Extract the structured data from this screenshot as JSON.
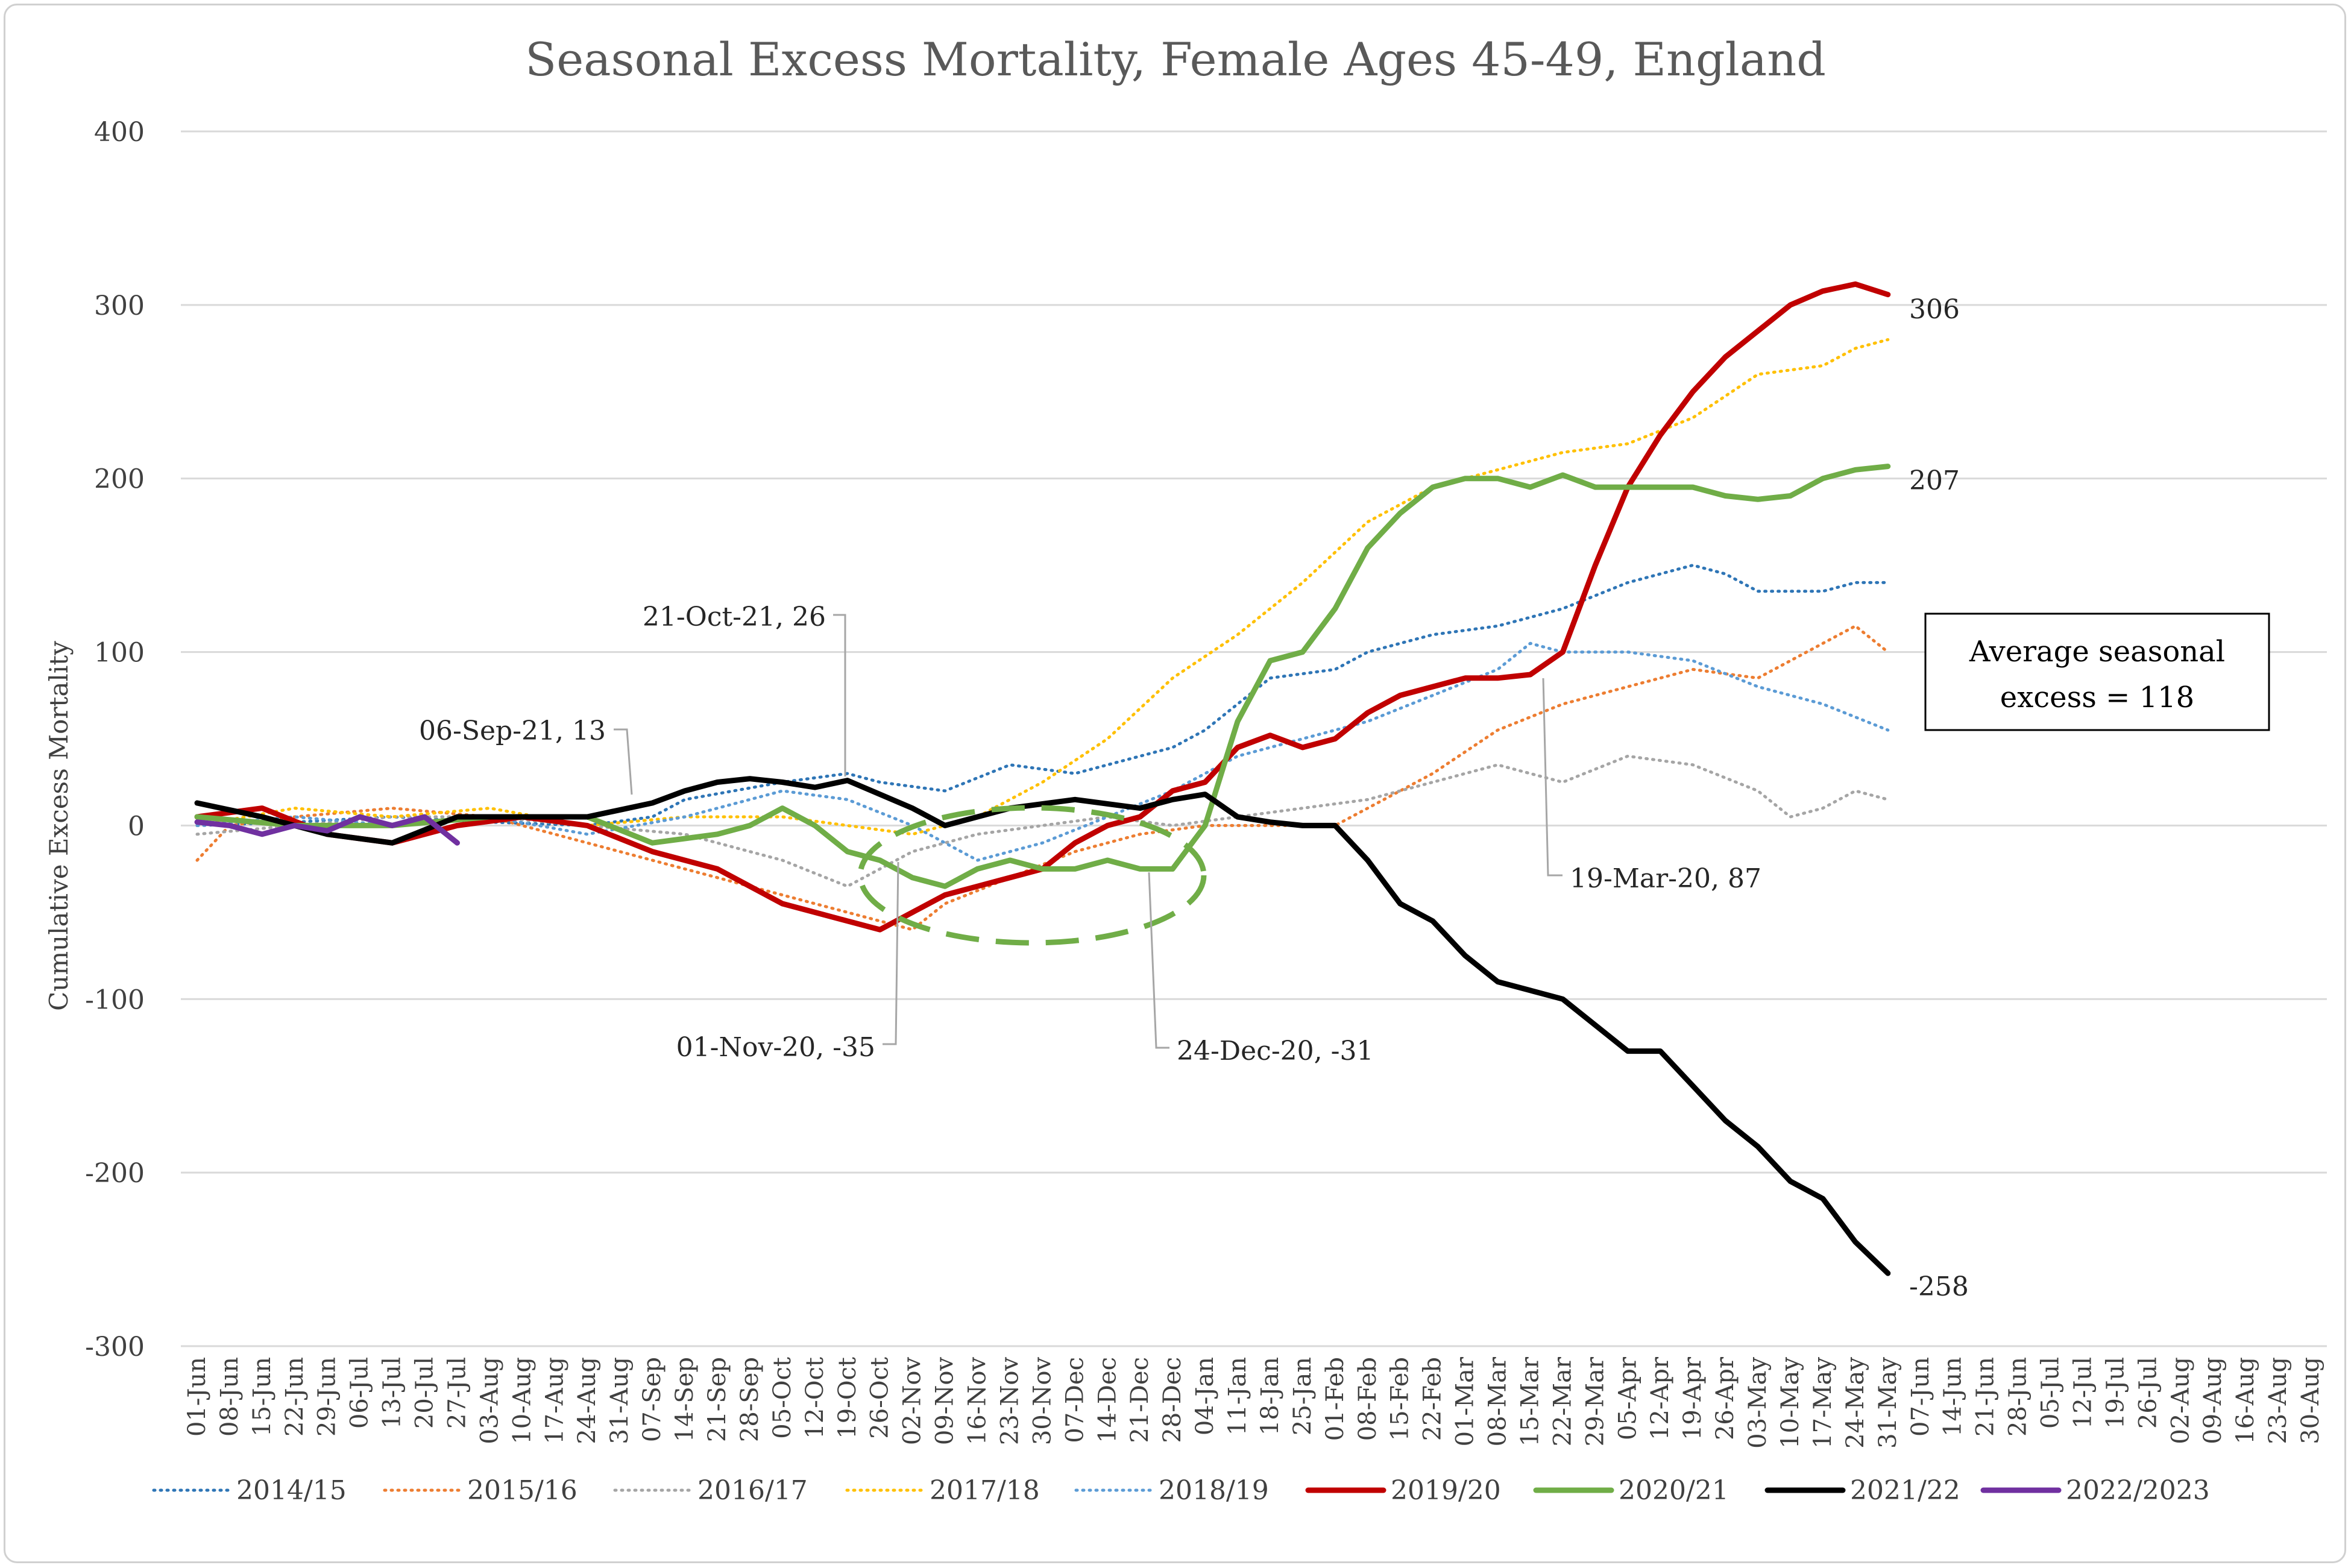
{
  "chart_data": {
    "type": "line",
    "title": "Seasonal Excess Mortality, Female Ages 45-49, England",
    "ylabel": "Cumulative Excess Mortality",
    "xlabel": "",
    "ylim": [
      -300,
      400
    ],
    "yticks": [
      400,
      300,
      200,
      100,
      0,
      -100,
      -200,
      -300
    ],
    "grid": "horizontal",
    "legend_position": "bottom",
    "x_tick_labels": [
      "01-Jun",
      "08-Jun",
      "15-Jun",
      "22-Jun",
      "29-Jun",
      "06-Jul",
      "13-Jul",
      "20-Jul",
      "27-Jul",
      "03-Aug",
      "10-Aug",
      "17-Aug",
      "24-Aug",
      "31-Aug",
      "07-Sep",
      "14-Sep",
      "21-Sep",
      "28-Sep",
      "05-Oct",
      "12-Oct",
      "19-Oct",
      "26-Oct",
      "02-Nov",
      "09-Nov",
      "16-Nov",
      "23-Nov",
      "30-Nov",
      "07-Dec",
      "14-Dec",
      "21-Dec",
      "28-Dec",
      "04-Jan",
      "11-Jan",
      "18-Jan",
      "25-Jan",
      "01-Feb",
      "08-Feb",
      "15-Feb",
      "22-Feb",
      "01-Mar",
      "08-Mar",
      "15-Mar",
      "22-Mar",
      "29-Mar",
      "05-Apr",
      "12-Apr",
      "19-Apr",
      "26-Apr",
      "03-May",
      "10-May",
      "17-May",
      "24-May",
      "31-May",
      "07-Jun",
      "14-Jun",
      "21-Jun",
      "28-Jun",
      "05-Jul",
      "12-Jul",
      "19-Jul",
      "26-Jul",
      "02-Aug",
      "09-Aug",
      "16-Aug",
      "23-Aug",
      "30-Aug"
    ],
    "x_units": "week index from 01-Jun",
    "series": [
      {
        "name": "2014/15",
        "color": "#2e75b6",
        "style": "dotted",
        "x": [
          0,
          3,
          6,
          9,
          12,
          14,
          15,
          18,
          20,
          21,
          23,
          25,
          27,
          29,
          30,
          31,
          32,
          33,
          35,
          36,
          38,
          40,
          41,
          42,
          44,
          46,
          47,
          48,
          50,
          51,
          52
        ],
        "y": [
          0,
          2,
          5,
          2,
          0,
          5,
          15,
          25,
          30,
          25,
          20,
          35,
          30,
          40,
          45,
          55,
          70,
          85,
          90,
          100,
          110,
          115,
          120,
          125,
          140,
          150,
          145,
          135,
          135,
          140,
          140
        ]
      },
      {
        "name": "2015/16",
        "color": "#ed7d31",
        "style": "dotted",
        "x": [
          0,
          1,
          3,
          6,
          9,
          12,
          14,
          16,
          18,
          20,
          21,
          22,
          23,
          25,
          27,
          29,
          31,
          33,
          35,
          36,
          38,
          40,
          42,
          44,
          46,
          48,
          50,
          51,
          52
        ],
        "y": [
          -20,
          0,
          5,
          10,
          5,
          -10,
          -20,
          -30,
          -40,
          -50,
          -55,
          -60,
          -45,
          -30,
          -15,
          -5,
          0,
          0,
          0,
          10,
          30,
          55,
          70,
          80,
          90,
          85,
          105,
          115,
          100
        ]
      },
      {
        "name": "2016/17",
        "color": "#a5a5a5",
        "style": "dotted",
        "x": [
          0,
          3,
          6,
          9,
          12,
          15,
          18,
          20,
          22,
          24,
          26,
          28,
          30,
          32,
          34,
          36,
          38,
          40,
          42,
          44,
          46,
          48,
          49,
          50,
          51,
          52
        ],
        "y": [
          -5,
          0,
          5,
          5,
          0,
          -5,
          -20,
          -35,
          -15,
          -5,
          0,
          5,
          0,
          5,
          10,
          15,
          25,
          35,
          25,
          40,
          35,
          20,
          5,
          10,
          20,
          15
        ]
      },
      {
        "name": "2017/18",
        "color": "#ffc000",
        "style": "dotted",
        "x": [
          0,
          3,
          6,
          9,
          12,
          15,
          18,
          20,
          22,
          24,
          26,
          28,
          30,
          32,
          34,
          36,
          38,
          40,
          42,
          44,
          46,
          48,
          50,
          51,
          52
        ],
        "y": [
          0,
          10,
          5,
          10,
          0,
          5,
          5,
          0,
          -5,
          5,
          25,
          50,
          85,
          110,
          140,
          175,
          195,
          205,
          215,
          220,
          235,
          260,
          265,
          275,
          280
        ]
      },
      {
        "name": "2018/19",
        "color": "#5b9bd5",
        "style": "dotted",
        "x": [
          0,
          3,
          6,
          9,
          12,
          15,
          18,
          20,
          22,
          23,
          24,
          25,
          26,
          28,
          30,
          32,
          34,
          36,
          38,
          40,
          41,
          42,
          44,
          46,
          48,
          50,
          52
        ],
        "y": [
          0,
          5,
          0,
          5,
          -5,
          5,
          20,
          15,
          0,
          -10,
          -20,
          -15,
          -10,
          5,
          20,
          40,
          50,
          60,
          75,
          90,
          105,
          100,
          100,
          95,
          80,
          70,
          55
        ]
      },
      {
        "name": "2019/20",
        "color": "#c00000",
        "style": "solid",
        "x": [
          0,
          2,
          4,
          6,
          8,
          10,
          12,
          14,
          16,
          18,
          19,
          20,
          21,
          22,
          23,
          24,
          26,
          27,
          28,
          29,
          30,
          31,
          32,
          33,
          34,
          35,
          36,
          37,
          38,
          39,
          40,
          41,
          42,
          43,
          44,
          45,
          46,
          47,
          48,
          49,
          50,
          51,
          52
        ],
        "y": [
          5,
          10,
          -5,
          -10,
          0,
          5,
          0,
          -15,
          -25,
          -45,
          -50,
          -55,
          -60,
          -50,
          -40,
          -35,
          -25,
          -10,
          0,
          5,
          20,
          25,
          45,
          52,
          45,
          50,
          65,
          75,
          80,
          85,
          85,
          87,
          100,
          150,
          195,
          225,
          250,
          270,
          285,
          300,
          308,
          312,
          306
        ]
      },
      {
        "name": "2020/21",
        "color": "#70ad47",
        "style": "solid",
        "x": [
          0,
          3,
          6,
          9,
          12,
          14,
          16,
          17,
          18,
          19,
          20,
          21,
          22,
          23,
          24,
          25,
          26,
          27,
          28,
          29,
          30,
          31,
          32,
          33,
          34,
          35,
          36,
          37,
          38,
          39,
          40,
          41,
          42,
          43,
          44,
          45,
          46,
          47,
          48,
          49,
          50,
          51,
          52
        ],
        "y": [
          5,
          0,
          0,
          5,
          5,
          -10,
          -5,
          0,
          10,
          0,
          -15,
          -20,
          -30,
          -35,
          -25,
          -20,
          -25,
          -25,
          -20,
          -25,
          -25,
          0,
          60,
          95,
          100,
          125,
          160,
          180,
          195,
          200,
          200,
          195,
          202,
          195,
          195,
          195,
          195,
          190,
          188,
          190,
          200,
          205,
          207
        ]
      },
      {
        "name": "2021/22",
        "color": "#000000",
        "style": "solid",
        "x": [
          0,
          2,
          4,
          6,
          8,
          10,
          12,
          14,
          15,
          16,
          17,
          18,
          19,
          20,
          21,
          22,
          23,
          25,
          27,
          29,
          30,
          31,
          32,
          33,
          34,
          35,
          36,
          37,
          38,
          39,
          40,
          41,
          42,
          43,
          44,
          45,
          46,
          47,
          48,
          49,
          50,
          51,
          52
        ],
        "y": [
          13,
          5,
          -5,
          -10,
          5,
          5,
          5,
          13,
          20,
          25,
          27,
          25,
          22,
          26,
          18,
          10,
          0,
          10,
          15,
          10,
          15,
          18,
          5,
          2,
          0,
          0,
          -20,
          -45,
          -55,
          -75,
          -90,
          -95,
          -100,
          -115,
          -130,
          -130,
          -150,
          -170,
          -185,
          -205,
          -215,
          -240,
          -258
        ]
      },
      {
        "name": "2022/2023",
        "color": "#7030a0",
        "style": "solid",
        "x": [
          0,
          1,
          2,
          3,
          4,
          5,
          6,
          7,
          8
        ],
        "y": [
          2,
          0,
          -5,
          0,
          -3,
          5,
          0,
          5,
          -10
        ]
      }
    ],
    "annotations": [
      {
        "text": "06-Sep-21, 13"
      },
      {
        "text": "21-Oct-21, 26"
      },
      {
        "text": "01-Nov-20, -35"
      },
      {
        "text": "24-Dec-20, -31"
      },
      {
        "text": "19-Mar-20, 87"
      }
    ],
    "end_labels": [
      {
        "series": "2019/20",
        "text": "306"
      },
      {
        "series": "2020/21",
        "text": "207"
      },
      {
        "series": "2021/22",
        "text": "-258"
      }
    ],
    "box_text": [
      "Average seasonal",
      "excess = 118"
    ]
  }
}
